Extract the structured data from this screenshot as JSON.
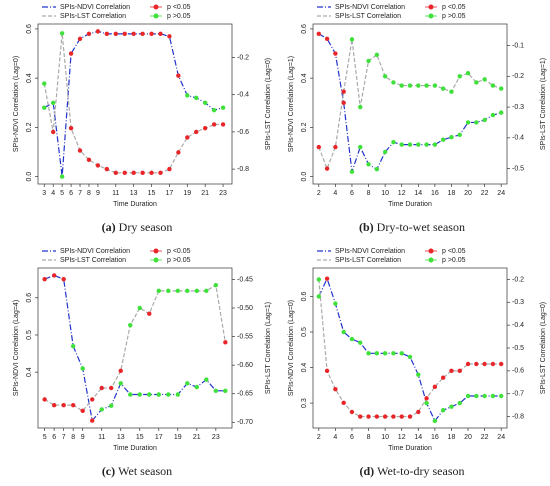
{
  "chart_data": [
    {
      "type": "line",
      "caption_label": "(a)",
      "caption": "Dry season",
      "xlabel": "Time Duration",
      "ylabel": "SPIs-NDVI Correlation (Lag=0)",
      "y2label": "SPIs-LST Correlation (Lag=0)",
      "marker_legend": [
        {
          "label": "p <0.05",
          "color": "#e8262a"
        },
        {
          "label": "p >0.05",
          "color": "#3ee03a"
        }
      ],
      "x": [
        3,
        4,
        5,
        6,
        7,
        8,
        9,
        10,
        11,
        12,
        13,
        14,
        15,
        16,
        17,
        18,
        19,
        20,
        21,
        22,
        23
      ],
      "xlim": [
        2.3,
        24
      ],
      "xticks": [
        3,
        4,
        5,
        6,
        7,
        8,
        9,
        11,
        13,
        15,
        17,
        19,
        21,
        23
      ],
      "ylim": [
        -0.03,
        0.62
      ],
      "yticks": [
        {
          "value": 0,
          "label": "0.0"
        },
        0.2,
        0.4,
        0.6
      ],
      "y2lim": [
        -0.88,
        -0.02
      ],
      "y2ticks": [
        -0.2,
        -0.4,
        -0.6,
        -0.8
      ],
      "series": [
        {
          "name": "SPIs-NDVI Correlation",
          "color": "#2233cc",
          "dash": "6,2,1,2",
          "axis": "y",
          "values": [
            0.28,
            0.3,
            0.0,
            0.5,
            0.56,
            0.58,
            0.59,
            0.58,
            0.58,
            0.58,
            0.58,
            0.58,
            0.58,
            0.58,
            0.57,
            0.41,
            0.33,
            0.32,
            0.3,
            0.27,
            0.28
          ],
          "marker_colors": [
            "#3ee03a",
            "#3ee03a",
            "#3ee03a",
            "#e8262a",
            "#e8262a",
            "#e8262a",
            "#e8262a",
            "#e8262a",
            "#e8262a",
            "#e8262a",
            "#e8262a",
            "#e8262a",
            "#e8262a",
            "#e8262a",
            "#e8262a",
            "#e8262a",
            "#3ee03a",
            "#3ee03a",
            "#3ee03a",
            "#3ee03a",
            "#3ee03a"
          ]
        },
        {
          "name": "SPIs-LST Correlation",
          "color": "#aaaaaa",
          "dash": "4,2",
          "axis": "y2",
          "values": [
            -0.34,
            -0.6,
            -0.07,
            -0.58,
            -0.7,
            -0.75,
            -0.78,
            -0.8,
            -0.82,
            -0.82,
            -0.82,
            -0.82,
            -0.82,
            -0.82,
            -0.8,
            -0.71,
            -0.63,
            -0.6,
            -0.58,
            -0.56,
            -0.56
          ],
          "marker_colors": [
            "#3ee03a",
            "#e8262a",
            "#3ee03a",
            "#e8262a",
            "#e8262a",
            "#e8262a",
            "#e8262a",
            "#e8262a",
            "#e8262a",
            "#e8262a",
            "#e8262a",
            "#e8262a",
            "#e8262a",
            "#e8262a",
            "#e8262a",
            "#e8262a",
            "#e8262a",
            "#e8262a",
            "#e8262a",
            "#e8262a",
            "#e8262a"
          ]
        }
      ]
    },
    {
      "type": "line",
      "caption_label": "(b)",
      "caption": "Dry-to-wet season",
      "xlabel": "Time Duration",
      "ylabel": "SPIs-NDVI Correlation (Lag=1)",
      "y2label": "SPIs-LST Correlation (Lag=1)",
      "marker_legend": [
        {
          "label": "p <0.05",
          "color": "#e8262a"
        },
        {
          "label": "p >0.05",
          "color": "#3ee03a"
        }
      ],
      "x": [
        2,
        3,
        4,
        5,
        6,
        7,
        8,
        9,
        10,
        11,
        12,
        13,
        14,
        15,
        16,
        17,
        18,
        19,
        20,
        21,
        22,
        23,
        24
      ],
      "xlim": [
        1.3,
        24.7
      ],
      "xticks": [
        2,
        4,
        6,
        8,
        10,
        12,
        14,
        16,
        18,
        20,
        22,
        24
      ],
      "ylim": [
        -0.03,
        0.62
      ],
      "yticks": [
        {
          "value": 0,
          "label": "0.0"
        },
        0.2,
        0.4,
        0.6
      ],
      "y2lim": [
        -0.55,
        -0.03
      ],
      "y2ticks": [
        -0.1,
        -0.2,
        -0.3,
        -0.4,
        -0.5
      ],
      "series": [
        {
          "name": "SPIs-NDVI Correlation",
          "color": "#2233cc",
          "dash": "6,2,1,2",
          "axis": "y",
          "values": [
            0.58,
            0.56,
            0.5,
            0.3,
            0.02,
            0.12,
            0.05,
            0.03,
            0.1,
            0.14,
            0.13,
            0.13,
            0.13,
            0.13,
            0.13,
            0.15,
            0.16,
            0.17,
            0.22,
            0.22,
            0.23,
            0.25,
            0.26
          ],
          "marker_colors": [
            "#e8262a",
            "#e8262a",
            "#e8262a",
            "#e8262a",
            "#3ee03a",
            "#3ee03a",
            "#3ee03a",
            "#3ee03a",
            "#3ee03a",
            "#3ee03a",
            "#3ee03a",
            "#3ee03a",
            "#3ee03a",
            "#3ee03a",
            "#3ee03a",
            "#3ee03a",
            "#3ee03a",
            "#3ee03a",
            "#3ee03a",
            "#3ee03a",
            "#3ee03a",
            "#3ee03a",
            "#3ee03a"
          ]
        },
        {
          "name": "SPIs-LST Correlation",
          "color": "#aaaaaa",
          "dash": "4,2",
          "axis": "y2",
          "values": [
            -0.43,
            -0.5,
            -0.43,
            -0.25,
            -0.08,
            -0.3,
            -0.15,
            -0.13,
            -0.2,
            -0.22,
            -0.23,
            -0.23,
            -0.23,
            -0.23,
            -0.23,
            -0.24,
            -0.25,
            -0.2,
            -0.19,
            -0.22,
            -0.21,
            -0.23,
            -0.24
          ],
          "marker_colors": [
            "#e8262a",
            "#e8262a",
            "#e8262a",
            "#e8262a",
            "#3ee03a",
            "#3ee03a",
            "#3ee03a",
            "#3ee03a",
            "#3ee03a",
            "#3ee03a",
            "#3ee03a",
            "#3ee03a",
            "#3ee03a",
            "#3ee03a",
            "#3ee03a",
            "#3ee03a",
            "#3ee03a",
            "#3ee03a",
            "#3ee03a",
            "#3ee03a",
            "#3ee03a",
            "#3ee03a",
            "#3ee03a"
          ]
        }
      ]
    },
    {
      "type": "line",
      "caption_label": "(c)",
      "caption": "Wet season",
      "xlabel": "Time Duration",
      "ylabel": "SPIs-NDVI Correlation (Lag=4)",
      "y2label": "SPIs-LST Correlation (Lag=1)",
      "marker_legend": [
        {
          "label": "p <0.05",
          "color": "#e8262a"
        },
        {
          "label": "p >0.05",
          "color": "#3ee03a"
        }
      ],
      "x": [
        5,
        6,
        7,
        8,
        9,
        10,
        11,
        12,
        13,
        14,
        15,
        16,
        17,
        18,
        19,
        20,
        21,
        22,
        23,
        24
      ],
      "xlim": [
        4.3,
        24.7
      ],
      "xticks": [
        5,
        6,
        7,
        8,
        9,
        11,
        13,
        15,
        17,
        19,
        21,
        23
      ],
      "ylim": [
        0.25,
        0.68
      ],
      "yticks": [
        0.4,
        0.5,
        0.6
      ],
      "y2lim": [
        -0.71,
        -0.43
      ],
      "y2ticks": [
        -0.45,
        {
          "value": -0.5,
          "label": "-0.50"
        },
        -0.55,
        {
          "value": -0.6,
          "label": "-0.60"
        },
        -0.65,
        {
          "value": -0.7,
          "label": "-0.70"
        }
      ],
      "series": [
        {
          "name": "SPIs-NDVI Correlation",
          "color": "#2233cc",
          "dash": "6,2,1,2",
          "axis": "y",
          "values": [
            0.65,
            0.66,
            0.65,
            0.47,
            0.41,
            0.27,
            0.3,
            0.31,
            0.37,
            0.34,
            0.34,
            0.34,
            0.34,
            0.34,
            0.34,
            0.37,
            0.36,
            0.38,
            0.35,
            0.35
          ],
          "marker_colors": [
            "#e8262a",
            "#e8262a",
            "#e8262a",
            "#3ee03a",
            "#3ee03a",
            "#e8262a",
            "#3ee03a",
            "#3ee03a",
            "#3ee03a",
            "#3ee03a",
            "#3ee03a",
            "#3ee03a",
            "#3ee03a",
            "#3ee03a",
            "#3ee03a",
            "#3ee03a",
            "#3ee03a",
            "#3ee03a",
            "#3ee03a",
            "#3ee03a"
          ]
        },
        {
          "name": "SPIs-LST Correlation",
          "color": "#aaaaaa",
          "dash": "4,2",
          "axis": "y2",
          "values": [
            -0.66,
            -0.67,
            -0.67,
            -0.67,
            -0.68,
            -0.66,
            -0.64,
            -0.64,
            -0.61,
            -0.53,
            -0.5,
            -0.51,
            -0.47,
            -0.47,
            -0.47,
            -0.47,
            -0.47,
            -0.47,
            -0.46,
            -0.56
          ],
          "marker_colors": [
            "#e8262a",
            "#e8262a",
            "#e8262a",
            "#e8262a",
            "#e8262a",
            "#e8262a",
            "#e8262a",
            "#e8262a",
            "#e8262a",
            "#3ee03a",
            "#3ee03a",
            "#e8262a",
            "#3ee03a",
            "#3ee03a",
            "#3ee03a",
            "#3ee03a",
            "#3ee03a",
            "#3ee03a",
            "#3ee03a",
            "#e8262a"
          ]
        }
      ]
    },
    {
      "type": "line",
      "caption_label": "(d)",
      "caption": "Wet-to-dry season",
      "xlabel": "Time Duration",
      "ylabel": "SPIs-NDVI Correlation (Lag=0)",
      "y2label": "SPIs-LST Correlation (Lag=0)",
      "marker_legend": [
        {
          "label": "p <0.05",
          "color": "#e8262a"
        },
        {
          "label": "p >0.05",
          "color": "#3ee03a"
        }
      ],
      "x": [
        2,
        3,
        4,
        5,
        6,
        7,
        8,
        9,
        10,
        11,
        12,
        13,
        14,
        15,
        16,
        17,
        18,
        19,
        20,
        21,
        22,
        23,
        24
      ],
      "xlim": [
        1.3,
        24.7
      ],
      "xticks": [
        2,
        4,
        6,
        8,
        10,
        12,
        14,
        16,
        18,
        20,
        22,
        24
      ],
      "ylim": [
        0.23,
        0.68
      ],
      "yticks": [
        0.3,
        0.4,
        0.5,
        0.6
      ],
      "y2lim": [
        -0.85,
        -0.15
      ],
      "y2ticks": [
        -0.2,
        -0.3,
        -0.4,
        -0.5,
        -0.6,
        -0.7,
        -0.8
      ],
      "series": [
        {
          "name": "SPIs-NDVI Correlation",
          "color": "#2233cc",
          "dash": "6,2,1,2",
          "axis": "y",
          "values": [
            0.6,
            0.65,
            0.58,
            0.5,
            0.48,
            0.47,
            0.44,
            0.44,
            0.44,
            0.44,
            0.44,
            0.43,
            0.38,
            0.3,
            0.25,
            0.28,
            0.29,
            0.3,
            0.32,
            0.32,
            0.32,
            0.32,
            0.32
          ],
          "marker_colors": [
            "#3ee03a",
            "#e8262a",
            "#3ee03a",
            "#3ee03a",
            "#3ee03a",
            "#3ee03a",
            "#3ee03a",
            "#3ee03a",
            "#3ee03a",
            "#3ee03a",
            "#3ee03a",
            "#3ee03a",
            "#3ee03a",
            "#3ee03a",
            "#3ee03a",
            "#3ee03a",
            "#3ee03a",
            "#3ee03a",
            "#3ee03a",
            "#3ee03a",
            "#3ee03a",
            "#3ee03a",
            "#3ee03a"
          ]
        },
        {
          "name": "SPIs-LST Correlation",
          "color": "#aaaaaa",
          "dash": "4,2",
          "axis": "y2",
          "values": [
            -0.2,
            -0.6,
            -0.68,
            -0.74,
            -0.78,
            -0.8,
            -0.8,
            -0.8,
            -0.8,
            -0.8,
            -0.8,
            -0.8,
            -0.78,
            -0.72,
            -0.67,
            -0.63,
            -0.6,
            -0.6,
            -0.57,
            -0.57,
            -0.57,
            -0.57,
            -0.57
          ],
          "marker_colors": [
            "#3ee03a",
            "#e8262a",
            "#e8262a",
            "#e8262a",
            "#e8262a",
            "#e8262a",
            "#e8262a",
            "#e8262a",
            "#e8262a",
            "#e8262a",
            "#e8262a",
            "#e8262a",
            "#e8262a",
            "#e8262a",
            "#e8262a",
            "#e8262a",
            "#e8262a",
            "#e8262a",
            "#e8262a",
            "#e8262a",
            "#e8262a",
            "#e8262a",
            "#e8262a"
          ]
        }
      ]
    }
  ]
}
